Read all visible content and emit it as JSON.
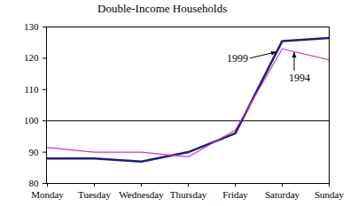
{
  "chart_data": {
    "type": "line",
    "title": "Double-Income Households",
    "categories": [
      "Monday",
      "Tuesday",
      "Wednesday",
      "Thursday",
      "Friday",
      "Saturday",
      "Sunday"
    ],
    "series": [
      {
        "name": "1999",
        "color": "#1f1f78",
        "values": [
          88,
          88,
          87,
          90,
          96,
          125.5,
          126.5
        ]
      },
      {
        "name": "1994",
        "color": "#cc33cc",
        "values": [
          91.5,
          90,
          90,
          88.5,
          97,
          123,
          119.5
        ]
      }
    ],
    "ylim": [
      80,
      130
    ],
    "yticks": [
      80,
      90,
      100,
      110,
      120,
      130
    ],
    "reference_line": 100,
    "grid": false
  }
}
